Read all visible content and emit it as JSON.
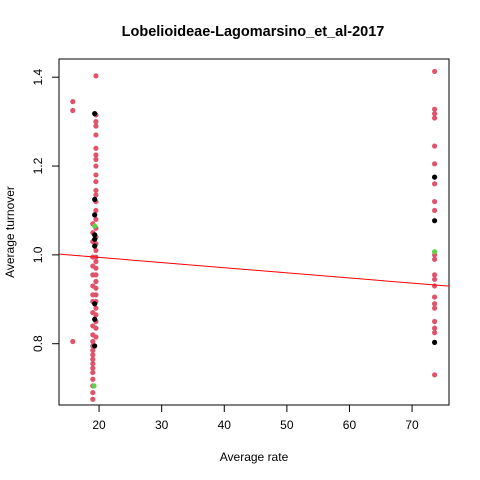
{
  "chart_data": {
    "type": "scatter",
    "title": "Lobelioideae-Lagomarsino_et_al-2017",
    "xlabel": "Average rate",
    "ylabel": "Average turnover",
    "xlim": [
      13.6,
      75.9
    ],
    "ylim": [
      0.662,
      1.441
    ],
    "xticks": [
      20,
      30,
      40,
      50,
      60,
      70
    ],
    "yticks": [
      0.8,
      1.0,
      1.2,
      1.4
    ],
    "grid": false,
    "box": true,
    "colors": {
      "pink": "#df536b",
      "black": "#000000",
      "green": "#61d04f",
      "line": "#ff0000"
    },
    "regression_line": {
      "intercept": 1.0175,
      "slope": -0.001159
    },
    "series": [
      {
        "color_key": "pink",
        "points": [
          [
            15.8,
            1.345
          ],
          [
            15.8,
            1.325
          ],
          [
            15.8,
            0.805
          ],
          [
            19.5,
            1.403
          ],
          [
            19.5,
            1.315
          ],
          [
            19.5,
            1.3
          ],
          [
            19.5,
            1.29
          ],
          [
            19.5,
            1.27
          ],
          [
            19.5,
            1.24
          ],
          [
            19.5,
            1.225
          ],
          [
            19.5,
            1.215
          ],
          [
            19.5,
            1.2
          ],
          [
            19.5,
            1.18
          ],
          [
            19.5,
            1.165
          ],
          [
            19.5,
            1.145
          ],
          [
            19.5,
            1.135
          ],
          [
            19.5,
            1.12
          ],
          [
            19.5,
            1.1
          ],
          [
            19.5,
            1.08
          ],
          [
            19.5,
            1.06
          ],
          [
            19.5,
            1.04
          ],
          [
            19.5,
            1.025
          ],
          [
            19.5,
            1.01
          ],
          [
            19.5,
            0.995
          ],
          [
            19.5,
            0.985
          ],
          [
            19.5,
            0.97
          ],
          [
            19.5,
            0.955
          ],
          [
            19.5,
            0.94
          ],
          [
            19.5,
            0.925
          ],
          [
            19.5,
            0.91
          ],
          [
            19.5,
            0.895
          ],
          [
            19.5,
            0.88
          ],
          [
            19.5,
            0.865
          ],
          [
            19.5,
            0.85
          ],
          [
            19.5,
            0.835
          ],
          [
            19.5,
            0.815
          ],
          [
            19.0,
            1.07
          ],
          [
            19.0,
            1.05
          ],
          [
            19.0,
            1.03
          ],
          [
            19.0,
            0.995
          ],
          [
            19.0,
            0.975
          ],
          [
            19.0,
            0.955
          ],
          [
            19.0,
            0.93
          ],
          [
            19.0,
            0.91
          ],
          [
            19.0,
            0.895
          ],
          [
            19.0,
            0.87
          ],
          [
            19.0,
            0.84
          ],
          [
            19.0,
            0.82
          ],
          [
            19.0,
            0.805
          ],
          [
            19.0,
            0.795
          ],
          [
            19.0,
            0.785
          ],
          [
            19.0,
            0.775
          ],
          [
            19.0,
            0.765
          ],
          [
            19.0,
            0.755
          ],
          [
            19.0,
            0.745
          ],
          [
            19.0,
            0.735
          ],
          [
            19.0,
            0.72
          ],
          [
            19.0,
            0.705
          ],
          [
            19.0,
            0.69
          ],
          [
            19.0,
            0.675
          ],
          [
            73.6,
            1.413
          ],
          [
            73.6,
            1.328
          ],
          [
            73.6,
            1.318
          ],
          [
            73.6,
            1.308
          ],
          [
            73.6,
            1.245
          ],
          [
            73.6,
            1.205
          ],
          [
            73.6,
            1.16
          ],
          [
            73.6,
            1.12
          ],
          [
            73.6,
            1.1
          ],
          [
            73.6,
            1.0
          ],
          [
            73.6,
            0.99
          ],
          [
            73.6,
            0.955
          ],
          [
            73.6,
            0.945
          ],
          [
            73.6,
            0.93
          ],
          [
            73.6,
            0.905
          ],
          [
            73.6,
            0.89
          ],
          [
            73.6,
            0.88
          ],
          [
            73.6,
            0.85
          ],
          [
            73.6,
            0.835
          ],
          [
            73.6,
            0.825
          ],
          [
            73.6,
            0.73
          ]
        ]
      },
      {
        "color_key": "black",
        "points": [
          [
            19.3,
            1.318
          ],
          [
            19.3,
            1.125
          ],
          [
            19.3,
            1.09
          ],
          [
            19.3,
            1.045
          ],
          [
            19.3,
            1.035
          ],
          [
            19.3,
            1.02
          ],
          [
            19.3,
            0.89
          ],
          [
            19.3,
            0.855
          ],
          [
            19.3,
            0.795
          ],
          [
            73.6,
            1.175
          ],
          [
            73.6,
            1.077
          ],
          [
            73.6,
            0.803
          ]
        ]
      },
      {
        "color_key": "green",
        "points": [
          [
            19.3,
            1.065
          ],
          [
            19.2,
            0.705
          ],
          [
            73.6,
            1.007
          ]
        ]
      }
    ]
  }
}
